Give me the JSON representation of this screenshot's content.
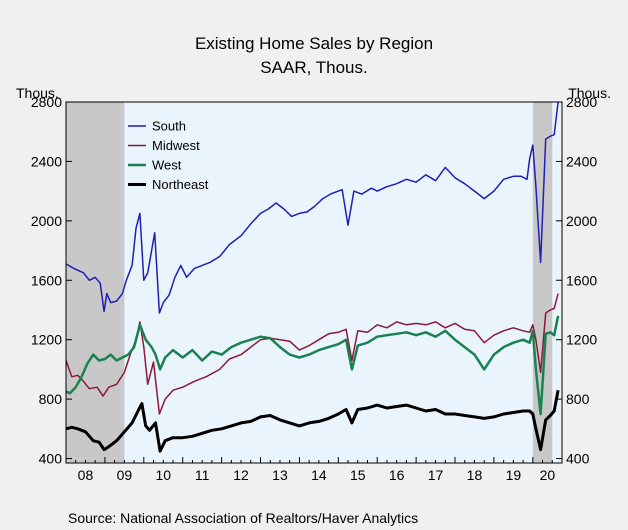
{
  "chart_data": {
    "type": "line",
    "title": "Existing Home Sales by Region",
    "subtitle": "SAAR, Thous.",
    "ylabel_left": "Thous.",
    "ylabel_right": "Thous.",
    "source": "Source:  National Association of Realtors/Haver Analytics",
    "ylim": [
      370,
      2800
    ],
    "yticks": [
      400,
      800,
      1200,
      1600,
      2000,
      2400,
      2800
    ],
    "yticks_right": [
      400,
      800,
      1200,
      1600,
      2000,
      2400,
      2800
    ],
    "xlim": [
      2008.0,
      2020.75
    ],
    "x_tick_labels": [
      "08",
      "09",
      "10",
      "11",
      "12",
      "13",
      "14",
      "15",
      "16",
      "17",
      "18",
      "19",
      "20"
    ],
    "recessions": [
      [
        2008.0,
        2009.5
      ],
      [
        2020.0,
        2020.5
      ]
    ],
    "colors": {
      "plot_bg": "#eaf4fc",
      "recession": "#c8c8c8",
      "page_bg": "#f0f0f0"
    },
    "series": [
      {
        "name": "South",
        "color": "#1f1fb4",
        "width": 1.5,
        "points": [
          [
            2008.0,
            1710
          ],
          [
            2008.2,
            1680
          ],
          [
            2008.45,
            1650
          ],
          [
            2008.6,
            1600
          ],
          [
            2008.75,
            1620
          ],
          [
            2008.88,
            1580
          ],
          [
            2008.98,
            1390
          ],
          [
            2009.05,
            1510
          ],
          [
            2009.15,
            1450
          ],
          [
            2009.3,
            1460
          ],
          [
            2009.45,
            1510
          ],
          [
            2009.55,
            1600
          ],
          [
            2009.7,
            1700
          ],
          [
            2009.8,
            1950
          ],
          [
            2009.9,
            2050
          ],
          [
            2010.0,
            1600
          ],
          [
            2010.1,
            1650
          ],
          [
            2010.2,
            1800
          ],
          [
            2010.28,
            1920
          ],
          [
            2010.4,
            1380
          ],
          [
            2010.5,
            1450
          ],
          [
            2010.65,
            1500
          ],
          [
            2010.8,
            1620
          ],
          [
            2010.95,
            1700
          ],
          [
            2011.1,
            1620
          ],
          [
            2011.3,
            1680
          ],
          [
            2011.5,
            1700
          ],
          [
            2011.7,
            1720
          ],
          [
            2011.95,
            1760
          ],
          [
            2012.2,
            1840
          ],
          [
            2012.5,
            1900
          ],
          [
            2012.75,
            1980
          ],
          [
            2013.0,
            2050
          ],
          [
            2013.2,
            2080
          ],
          [
            2013.4,
            2120
          ],
          [
            2013.6,
            2080
          ],
          [
            2013.8,
            2030
          ],
          [
            2014.0,
            2050
          ],
          [
            2014.2,
            2060
          ],
          [
            2014.4,
            2100
          ],
          [
            2014.6,
            2150
          ],
          [
            2014.8,
            2180
          ],
          [
            2015.0,
            2200
          ],
          [
            2015.1,
            2210
          ],
          [
            2015.25,
            1970
          ],
          [
            2015.4,
            2200
          ],
          [
            2015.6,
            2180
          ],
          [
            2015.85,
            2220
          ],
          [
            2016.0,
            2200
          ],
          [
            2016.25,
            2230
          ],
          [
            2016.5,
            2250
          ],
          [
            2016.75,
            2280
          ],
          [
            2017.0,
            2260
          ],
          [
            2017.25,
            2310
          ],
          [
            2017.5,
            2270
          ],
          [
            2017.75,
            2360
          ],
          [
            2018.0,
            2290
          ],
          [
            2018.25,
            2250
          ],
          [
            2018.5,
            2200
          ],
          [
            2018.75,
            2150
          ],
          [
            2019.0,
            2200
          ],
          [
            2019.25,
            2280
          ],
          [
            2019.5,
            2300
          ],
          [
            2019.7,
            2300
          ],
          [
            2019.85,
            2280
          ],
          [
            2019.92,
            2420
          ],
          [
            2020.0,
            2510
          ],
          [
            2020.08,
            2230
          ],
          [
            2020.2,
            1720
          ],
          [
            2020.33,
            2550
          ],
          [
            2020.45,
            2570
          ],
          [
            2020.55,
            2580
          ],
          [
            2020.65,
            2800
          ]
        ]
      },
      {
        "name": "Midwest",
        "color": "#8b1a3a",
        "width": 1.5,
        "points": [
          [
            2008.0,
            1060
          ],
          [
            2008.15,
            950
          ],
          [
            2008.3,
            960
          ],
          [
            2008.45,
            920
          ],
          [
            2008.6,
            870
          ],
          [
            2008.8,
            880
          ],
          [
            2008.95,
            820
          ],
          [
            2009.1,
            880
          ],
          [
            2009.3,
            900
          ],
          [
            2009.5,
            980
          ],
          [
            2009.65,
            1100
          ],
          [
            2009.8,
            1200
          ],
          [
            2009.9,
            1320
          ],
          [
            2010.0,
            1150
          ],
          [
            2010.1,
            900
          ],
          [
            2010.25,
            1050
          ],
          [
            2010.4,
            700
          ],
          [
            2010.55,
            800
          ],
          [
            2010.75,
            860
          ],
          [
            2011.0,
            880
          ],
          [
            2011.3,
            920
          ],
          [
            2011.6,
            950
          ],
          [
            2011.95,
            1000
          ],
          [
            2012.2,
            1070
          ],
          [
            2012.5,
            1100
          ],
          [
            2012.75,
            1150
          ],
          [
            2013.0,
            1200
          ],
          [
            2013.25,
            1210
          ],
          [
            2013.5,
            1200
          ],
          [
            2013.75,
            1190
          ],
          [
            2014.0,
            1130
          ],
          [
            2014.25,
            1160
          ],
          [
            2014.5,
            1200
          ],
          [
            2014.75,
            1240
          ],
          [
            2015.0,
            1250
          ],
          [
            2015.2,
            1270
          ],
          [
            2015.35,
            1060
          ],
          [
            2015.5,
            1260
          ],
          [
            2015.75,
            1250
          ],
          [
            2016.0,
            1300
          ],
          [
            2016.25,
            1280
          ],
          [
            2016.5,
            1320
          ],
          [
            2016.75,
            1300
          ],
          [
            2017.0,
            1310
          ],
          [
            2017.25,
            1300
          ],
          [
            2017.5,
            1320
          ],
          [
            2017.75,
            1280
          ],
          [
            2018.0,
            1310
          ],
          [
            2018.25,
            1270
          ],
          [
            2018.5,
            1260
          ],
          [
            2018.75,
            1180
          ],
          [
            2019.0,
            1230
          ],
          [
            2019.25,
            1260
          ],
          [
            2019.5,
            1280
          ],
          [
            2019.75,
            1260
          ],
          [
            2019.92,
            1250
          ],
          [
            2020.0,
            1300
          ],
          [
            2020.08,
            1200
          ],
          [
            2020.2,
            980
          ],
          [
            2020.33,
            1380
          ],
          [
            2020.45,
            1400
          ],
          [
            2020.55,
            1410
          ],
          [
            2020.65,
            1510
          ]
        ]
      },
      {
        "name": "West",
        "color": "#1a8250",
        "width": 2.5,
        "points": [
          [
            2008.0,
            850
          ],
          [
            2008.1,
            840
          ],
          [
            2008.25,
            880
          ],
          [
            2008.4,
            950
          ],
          [
            2008.55,
            1040
          ],
          [
            2008.7,
            1100
          ],
          [
            2008.85,
            1060
          ],
          [
            2009.0,
            1070
          ],
          [
            2009.15,
            1100
          ],
          [
            2009.3,
            1060
          ],
          [
            2009.45,
            1080
          ],
          [
            2009.6,
            1100
          ],
          [
            2009.75,
            1150
          ],
          [
            2009.9,
            1300
          ],
          [
            2010.05,
            1200
          ],
          [
            2010.2,
            1150
          ],
          [
            2010.3,
            1100
          ],
          [
            2010.42,
            1000
          ],
          [
            2010.55,
            1080
          ],
          [
            2010.75,
            1130
          ],
          [
            2011.0,
            1080
          ],
          [
            2011.25,
            1130
          ],
          [
            2011.5,
            1060
          ],
          [
            2011.75,
            1120
          ],
          [
            2012.0,
            1100
          ],
          [
            2012.25,
            1150
          ],
          [
            2012.5,
            1180
          ],
          [
            2012.75,
            1200
          ],
          [
            2013.0,
            1220
          ],
          [
            2013.25,
            1210
          ],
          [
            2013.5,
            1150
          ],
          [
            2013.75,
            1100
          ],
          [
            2014.0,
            1080
          ],
          [
            2014.25,
            1100
          ],
          [
            2014.5,
            1130
          ],
          [
            2014.75,
            1150
          ],
          [
            2015.0,
            1170
          ],
          [
            2015.2,
            1200
          ],
          [
            2015.35,
            1000
          ],
          [
            2015.5,
            1160
          ],
          [
            2015.75,
            1180
          ],
          [
            2016.0,
            1220
          ],
          [
            2016.25,
            1230
          ],
          [
            2016.5,
            1240
          ],
          [
            2016.75,
            1250
          ],
          [
            2017.0,
            1230
          ],
          [
            2017.25,
            1250
          ],
          [
            2017.5,
            1220
          ],
          [
            2017.75,
            1260
          ],
          [
            2018.0,
            1200
          ],
          [
            2018.25,
            1150
          ],
          [
            2018.5,
            1100
          ],
          [
            2018.75,
            1000
          ],
          [
            2019.0,
            1100
          ],
          [
            2019.25,
            1150
          ],
          [
            2019.5,
            1180
          ],
          [
            2019.75,
            1200
          ],
          [
            2019.92,
            1180
          ],
          [
            2020.0,
            1260
          ],
          [
            2020.08,
            1000
          ],
          [
            2020.2,
            700
          ],
          [
            2020.33,
            1240
          ],
          [
            2020.45,
            1250
          ],
          [
            2020.55,
            1230
          ],
          [
            2020.65,
            1360
          ]
        ]
      },
      {
        "name": "Northeast",
        "color": "#000000",
        "width": 3.0,
        "points": [
          [
            2008.0,
            600
          ],
          [
            2008.15,
            610
          ],
          [
            2008.3,
            600
          ],
          [
            2008.5,
            580
          ],
          [
            2008.7,
            520
          ],
          [
            2008.85,
            510
          ],
          [
            2008.98,
            460
          ],
          [
            2009.1,
            480
          ],
          [
            2009.3,
            520
          ],
          [
            2009.5,
            580
          ],
          [
            2009.7,
            640
          ],
          [
            2009.85,
            720
          ],
          [
            2009.95,
            770
          ],
          [
            2010.05,
            620
          ],
          [
            2010.15,
            590
          ],
          [
            2010.3,
            640
          ],
          [
            2010.42,
            450
          ],
          [
            2010.55,
            520
          ],
          [
            2010.75,
            540
          ],
          [
            2011.0,
            540
          ],
          [
            2011.25,
            550
          ],
          [
            2011.5,
            570
          ],
          [
            2011.75,
            590
          ],
          [
            2012.0,
            600
          ],
          [
            2012.25,
            620
          ],
          [
            2012.5,
            640
          ],
          [
            2012.75,
            650
          ],
          [
            2013.0,
            680
          ],
          [
            2013.25,
            690
          ],
          [
            2013.5,
            660
          ],
          [
            2013.75,
            640
          ],
          [
            2014.0,
            620
          ],
          [
            2014.25,
            640
          ],
          [
            2014.5,
            650
          ],
          [
            2014.75,
            670
          ],
          [
            2015.0,
            700
          ],
          [
            2015.2,
            730
          ],
          [
            2015.35,
            640
          ],
          [
            2015.5,
            730
          ],
          [
            2015.75,
            740
          ],
          [
            2016.0,
            760
          ],
          [
            2016.25,
            740
          ],
          [
            2016.5,
            750
          ],
          [
            2016.75,
            760
          ],
          [
            2017.0,
            740
          ],
          [
            2017.25,
            720
          ],
          [
            2017.5,
            730
          ],
          [
            2017.75,
            700
          ],
          [
            2018.0,
            700
          ],
          [
            2018.25,
            690
          ],
          [
            2018.5,
            680
          ],
          [
            2018.75,
            670
          ],
          [
            2019.0,
            680
          ],
          [
            2019.25,
            700
          ],
          [
            2019.5,
            710
          ],
          [
            2019.75,
            720
          ],
          [
            2019.92,
            720
          ],
          [
            2020.0,
            700
          ],
          [
            2020.08,
            600
          ],
          [
            2020.2,
            460
          ],
          [
            2020.33,
            660
          ],
          [
            2020.45,
            690
          ],
          [
            2020.55,
            720
          ],
          [
            2020.65,
            860
          ]
        ]
      }
    ]
  }
}
